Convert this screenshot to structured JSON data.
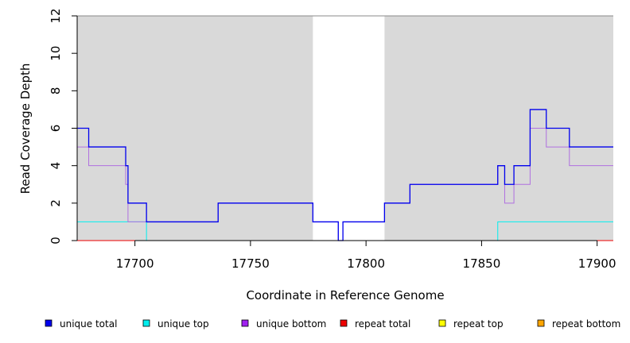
{
  "chart_data": {
    "type": "line",
    "step": true,
    "xlabel": "Coordinate in Reference Genome",
    "ylabel": "Read Coverage Depth",
    "xlim": [
      17675,
      17907
    ],
    "ylim": [
      0,
      12
    ],
    "xticks": [
      17700,
      17750,
      17800,
      17850,
      17900
    ],
    "yticks": [
      0,
      2,
      4,
      6,
      8,
      10,
      12
    ],
    "background_color": "#d9d9d9",
    "shaded_regions": [
      {
        "x0": 17675,
        "x1": 17777
      },
      {
        "x0": 17808,
        "x1": 17907
      }
    ],
    "legend_position": "bottom",
    "series": [
      {
        "name": "unique total",
        "color": "#0000ee",
        "x": [
          17675,
          17680,
          17696,
          17697,
          17705,
          17736,
          17777,
          17788,
          17790,
          17808,
          17819,
          17857,
          17860,
          17864,
          17871,
          17878,
          17888,
          17907
        ],
        "y": [
          6,
          5,
          4,
          2,
          1,
          2,
          1,
          0,
          1,
          2,
          3,
          4,
          3,
          4,
          7,
          6,
          5,
          5
        ]
      },
      {
        "name": "unique top",
        "color": "#00eeee",
        "x": [
          17675,
          17705,
          17857,
          17907
        ],
        "y": [
          1,
          0,
          1,
          1
        ]
      },
      {
        "name": "unique bottom",
        "color": "#b070e0",
        "x": [
          17675,
          17680,
          17696,
          17697,
          17705,
          17736,
          17777,
          17788,
          17790,
          17808,
          17819,
          17857,
          17860,
          17864,
          17871,
          17878,
          17888,
          17907
        ],
        "y": [
          5,
          4,
          3,
          1,
          1,
          2,
          1,
          0,
          1,
          2,
          3,
          4,
          2,
          3,
          6,
          5,
          4,
          4
        ]
      },
      {
        "name": "repeat total",
        "color": "#ee0000",
        "x": [
          17675,
          17907
        ],
        "y": [
          0,
          0
        ]
      },
      {
        "name": "repeat top",
        "color": "#eeee00",
        "x": [
          17675,
          17907
        ],
        "y": [
          0,
          0
        ]
      },
      {
        "name": "repeat bottom",
        "color": "#ffa500",
        "x": [
          17675,
          17907
        ],
        "y": [
          0,
          0
        ]
      }
    ],
    "legend": [
      {
        "label": "unique total",
        "color": "#0000ee"
      },
      {
        "label": "unique top",
        "color": "#00eeee"
      },
      {
        "label": "unique bottom",
        "color": "#a020f0"
      },
      {
        "label": "repeat total",
        "color": "#ee0000"
      },
      {
        "label": "repeat top",
        "color": "#ffff00"
      },
      {
        "label": "repeat bottom",
        "color": "#ffa500"
      }
    ]
  }
}
